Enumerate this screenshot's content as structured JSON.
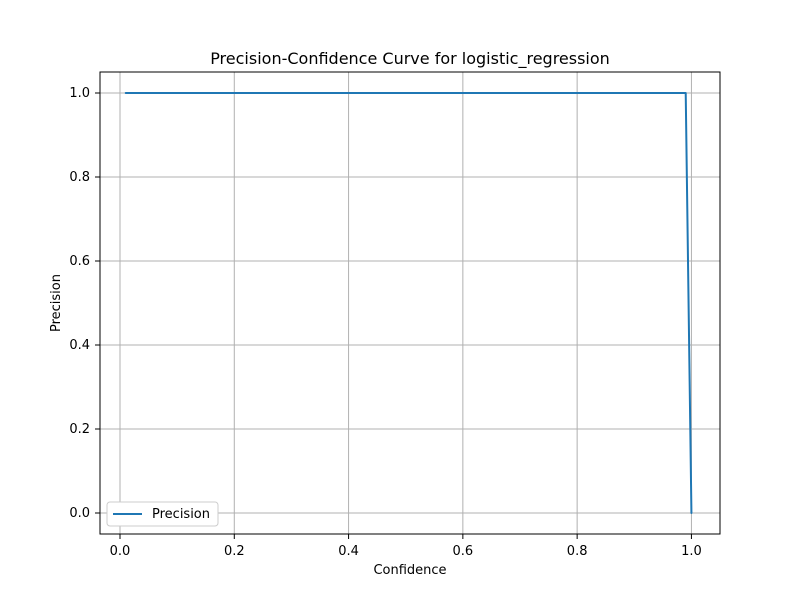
{
  "chart_data": {
    "type": "line",
    "title": "Precision-Confidence Curve for logistic_regression",
    "xlabel": "Confidence",
    "ylabel": "Precision",
    "xlim": [
      -0.035,
      1.05
    ],
    "ylim": [
      -0.05,
      1.05
    ],
    "x_ticks": [
      0.0,
      0.2,
      0.4,
      0.6,
      0.8,
      1.0
    ],
    "x_tick_labels": [
      "0.0",
      "0.2",
      "0.4",
      "0.6",
      "0.8",
      "1.0"
    ],
    "y_ticks": [
      0.0,
      0.2,
      0.4,
      0.6,
      0.8,
      1.0
    ],
    "y_tick_labels": [
      "0.0",
      "0.2",
      "0.4",
      "0.6",
      "0.8",
      "1.0"
    ],
    "grid": true,
    "legend": {
      "position": "lower-left",
      "entries": [
        "Precision"
      ]
    },
    "series": [
      {
        "name": "Precision",
        "color": "#1f77b4",
        "x": [
          0.01,
          0.99,
          1.0
        ],
        "y": [
          1.0,
          1.0,
          0.0
        ]
      }
    ]
  }
}
